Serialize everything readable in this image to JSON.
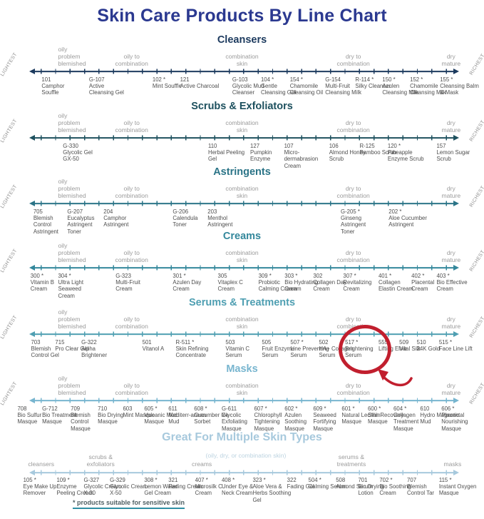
{
  "colors": {
    "title": "#2b3990",
    "zone_label": "#9b9b9b",
    "product_text": "#4e4e4e",
    "side_label": "#8f8f8f",
    "highlight": "#c11f2e",
    "footnote_underline": "#2e8fa3"
  },
  "chart_data": {
    "type": "line",
    "title": "Skin Care Products By Line Chart",
    "footnote": "* products suitable for sensitive skin",
    "axis_endpoints": {
      "left": "LIGHTEST",
      "right": "RICHEST"
    },
    "x_scale": "percent position along each line, 0 = lightest, 100 = richest",
    "asterisk_meaning": "products suitable for sensitive skin",
    "skin_zones": [
      {
        "label": "oily\nproblem\nblemished",
        "x": 12,
        "align": "left"
      },
      {
        "label": "oily to\ncombination",
        "x": 27.2,
        "align": "center"
      },
      {
        "label": "combination\nskin",
        "x": 50,
        "align": "center"
      },
      {
        "label": "dry to\ncombination",
        "x": 73,
        "align": "center"
      },
      {
        "label": "dry\nmature",
        "x": 93.2,
        "align": "center"
      }
    ],
    "highlight": {
      "section": "Serums & Treatments",
      "product_code": "517 *",
      "note": "red circle with arrow"
    },
    "sections": [
      {
        "name": "Cleansers",
        "color": "#1c3a5e",
        "products": [
          {
            "code": "101",
            "name": "Camphor Souffle",
            "x": 8.6
          },
          {
            "code": "G-107",
            "name": "Active Cleansing Gel",
            "x": 18.4
          },
          {
            "code": "102 *",
            "name": "Mint Souffle",
            "x": 31.5
          },
          {
            "code": "121",
            "name": "Active Charcoal",
            "x": 37.2
          },
          {
            "code": "G-103",
            "name": "Glycolic Mud Cleanser",
            "x": 48.0
          },
          {
            "code": "104 *",
            "name": "Gentle Cleansing Gel",
            "x": 53.9
          },
          {
            "code": "154 *",
            "name": "Chamomile Cleansing Oil",
            "x": 59.9
          },
          {
            "code": "G-154",
            "name": "Multi-Fruit Cleansing Milk",
            "x": 67.2
          },
          {
            "code": "R-114 *",
            "name": "Silky Cleanser",
            "x": 73.4
          },
          {
            "code": "150 *",
            "name": "Azulen Cleansing Milk",
            "x": 79.0
          },
          {
            "code": "152 *",
            "name": "Chamomile Cleansing Milk",
            "x": 84.7
          },
          {
            "code": "155 *",
            "name": "Cleansing Balm & Mask",
            "x": 90.9
          }
        ]
      },
      {
        "name": "Scrubs & Exfoliators",
        "color": "#1d505e",
        "products": [
          {
            "code": "G-330",
            "name": "Glycolic Gel GX-50",
            "x": 13.0
          },
          {
            "code": "110",
            "name": "Herbal Peeling Gel",
            "x": 43.0
          },
          {
            "code": "127",
            "name": "Pumpkin Enzyme",
            "x": 51.7
          },
          {
            "code": "107",
            "name": "Micro-dermabrasion Cream",
            "x": 58.7
          },
          {
            "code": "106",
            "name": "Almond Honey Scrub",
            "x": 68.0
          },
          {
            "code": "R-125",
            "name": "Bamboo Scrub",
            "x": 74.3
          },
          {
            "code": "120 *",
            "name": "Pineapple Enzyme Scrub",
            "x": 80.1
          },
          {
            "code": "157",
            "name": "Lemon Sugar Scrub",
            "x": 90.2
          }
        ]
      },
      {
        "name": "Astringents",
        "color": "#2b7487",
        "products": [
          {
            "code": "705",
            "name": "Blemish Control Astringent",
            "x": 6.9
          },
          {
            "code": "G-207",
            "name": "Eucalyptus Astringent Toner",
            "x": 13.9
          },
          {
            "code": "204",
            "name": "Camphor Astringent",
            "x": 21.4
          },
          {
            "code": "G-206",
            "name": "Calendula Toner",
            "x": 35.7
          },
          {
            "code": "203",
            "name": "Menthol Astringent",
            "x": 42.9
          },
          {
            "code": "G-205 *",
            "name": "Ginseng Astringent Toner",
            "x": 70.4
          },
          {
            "code": "202 *",
            "name": "Aloe Cucumber Astringent",
            "x": 80.3
          }
        ]
      },
      {
        "name": "Creams",
        "color": "#33879b",
        "products": [
          {
            "code": "300 *",
            "name": "Vitamin B Cream",
            "x": 6.3
          },
          {
            "code": "304 *",
            "name": "Ultra Light Seaweed Cream",
            "x": 12.0
          },
          {
            "code": "G-323",
            "name": "Multi-Fruit Cream",
            "x": 23.9
          },
          {
            "code": "301 *",
            "name": "Azulen Day Cream",
            "x": 35.7
          },
          {
            "code": "305",
            "name": "Vitaplex C Cream",
            "x": 45.0
          },
          {
            "code": "309 *",
            "name": "Probiotic Calming Cream",
            "x": 53.4
          },
          {
            "code": "303 *",
            "name": "Bio Hydrating Cream",
            "x": 58.8
          },
          {
            "code": "302",
            "name": "Collagen Day Cream",
            "x": 64.7
          },
          {
            "code": "307 *",
            "name": "Revitalizing Cream",
            "x": 70.9
          },
          {
            "code": "401 *",
            "name": "Collagen Elastin Cream",
            "x": 78.2
          },
          {
            "code": "402 *",
            "name": "Placental Cream",
            "x": 85.0
          },
          {
            "code": "403 *",
            "name": "Bio Effective Cream",
            "x": 90.2
          }
        ]
      },
      {
        "name": "Serums & Treatments",
        "color": "#4f9fb2",
        "products": [
          {
            "code": "703",
            "name": "Blemish Control Gel",
            "x": 6.4
          },
          {
            "code": "715",
            "name": "Pro Clear Gel",
            "x": 11.4
          },
          {
            "code": "G-322",
            "name": "Alpha Brightener",
            "x": 16.8
          },
          {
            "code": "501",
            "name": "Vitanol A",
            "x": 29.4
          },
          {
            "code": "R-511 *",
            "name": "Skin Refining Concentrate",
            "x": 36.3
          },
          {
            "code": "503",
            "name": "Vitamin C Serum",
            "x": 46.6
          },
          {
            "code": "505",
            "name": "Fruit Enzyme Serum",
            "x": 54.1
          },
          {
            "code": "507 *",
            "name": "Line Preventing Serum",
            "x": 60.0
          },
          {
            "code": "502",
            "name": "HA+ Collagen Serum",
            "x": 65.9
          },
          {
            "code": "517 *",
            "name": "Brightening Serum",
            "x": 71.3,
            "highlighted": true
          },
          {
            "code": "555",
            "name": "Lifting Elixir",
            "x": 78.2
          },
          {
            "code": "509",
            "name": "Vital Silk",
            "x": 82.5
          },
          {
            "code": "510",
            "name": "24K Gold",
            "x": 86.1
          },
          {
            "code": "515 *",
            "name": "Face Line Lift",
            "x": 90.7
          }
        ]
      },
      {
        "name": "Masks",
        "color": "#77b5cf",
        "products": [
          {
            "code": "708",
            "name": "Bio Sulfur Masque",
            "x": 3.6
          },
          {
            "code": "G-712",
            "name": "Bio Treatment Masque",
            "x": 8.7
          },
          {
            "code": "709",
            "name": "Blemish Control Masque",
            "x": 14.6
          },
          {
            "code": "710",
            "name": "Bio Drying Masque",
            "x": 20.2
          },
          {
            "code": "603",
            "name": "Mint Masque",
            "x": 25.4
          },
          {
            "code": "605 *",
            "name": "Volcanic Mud Masque",
            "x": 29.8
          },
          {
            "code": "611",
            "name": "Mediterr-anean Mud",
            "x": 34.8
          },
          {
            "code": "608 *",
            "name": "Cucumber Ice Sorbet",
            "x": 40.1
          },
          {
            "code": "G-611",
            "name": "Glycolic Exfoliating Masque",
            "x": 45.8
          },
          {
            "code": "607 *",
            "name": "Chlorophyll Tightening Masque",
            "x": 52.5
          },
          {
            "code": "602 *",
            "name": "Azulen Soothing Masque",
            "x": 58.8
          },
          {
            "code": "609 *",
            "name": "Seaweed Fortifying Masque",
            "x": 64.7
          },
          {
            "code": "601 *",
            "name": "Natural Lecithin Masque",
            "x": 70.6
          },
          {
            "code": "600 *",
            "name": "Skin Recovery Masque",
            "x": 76.0
          },
          {
            "code": "604 *",
            "name": "Collagen Treatment Masque",
            "x": 81.3
          },
          {
            "code": "610",
            "name": "Hydro Magnetic Mud",
            "x": 86.8
          },
          {
            "code": "606 *",
            "name": "Placental Nourishing Masque",
            "x": 91.2
          }
        ]
      },
      {
        "name": "Great For Multiple Skin Types",
        "color": "#a7c9dd",
        "no_side_labels": true,
        "zones": [
          {
            "label": "cleansers",
            "x": 8.5,
            "align": "center"
          },
          {
            "label": "scrubs &\nexfoliators",
            "x": 20.8,
            "align": "center"
          },
          {
            "label": "creams",
            "x": 41.7,
            "align": "center"
          },
          {
            "label": "(oily, dry, or combination skin)",
            "x": 50.8,
            "align": "center",
            "muted": true
          },
          {
            "label": "serums &\ntreatments",
            "x": 72.6,
            "align": "center"
          },
          {
            "label": "masks",
            "x": 93.5,
            "align": "center"
          }
        ],
        "products": [
          {
            "code": "105 *",
            "name": "Eye Make Up Remover",
            "x": 4.8
          },
          {
            "code": "109 *",
            "name": "Enzyme Peeling Cream",
            "x": 11.7
          },
          {
            "code": "G-327",
            "name": "Glycolic Cream X-30",
            "x": 17.3
          },
          {
            "code": "G-329",
            "name": "Glycolic Cream X-50",
            "x": 22.7
          },
          {
            "code": "308 *",
            "name": "Lemon Water Gel Cream",
            "x": 29.8
          },
          {
            "code": "321",
            "name": "Fading Cream",
            "x": 34.8
          },
          {
            "code": "407 *",
            "name": "Microsilk C Cream",
            "x": 40.3
          },
          {
            "code": "408 *",
            "name": "Under Eye & Neck Cream",
            "x": 45.8
          },
          {
            "code": "323 *",
            "name": "Aloe Vera & Herbs Soothing Gel",
            "x": 52.2
          },
          {
            "code": "322",
            "name": "Fading Gel",
            "x": 59.3
          },
          {
            "code": "504 *",
            "name": "Calming Serum",
            "x": 63.7
          },
          {
            "code": "508",
            "name": "Almond Serum",
            "x": 69.4
          },
          {
            "code": "701",
            "name": "Bio Drying Lotion",
            "x": 74.0
          },
          {
            "code": "702 *",
            "name": "Bio Soothing Cream",
            "x": 78.4
          },
          {
            "code": "707",
            "name": "Blemish Control Tar",
            "x": 84.1
          },
          {
            "code": "115 *",
            "name": "Instant Oxygen Masque",
            "x": 90.7
          }
        ]
      }
    ]
  }
}
